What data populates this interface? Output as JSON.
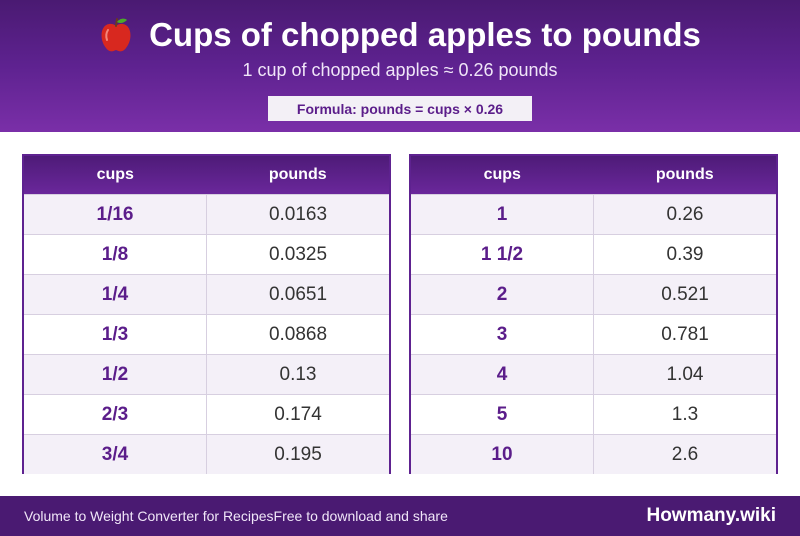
{
  "header": {
    "title": "Cups of chopped apples to pounds",
    "icon": "apple-icon",
    "subtitle": "1 cup of chopped apples ≈ 0.26 pounds",
    "formula": "Formula: pounds = cups × 0.26"
  },
  "tables": [
    {
      "headers": [
        "cups",
        "pounds"
      ],
      "rows": [
        [
          "1/16",
          "0.0163"
        ],
        [
          "1/8",
          "0.0325"
        ],
        [
          "1/4",
          "0.0651"
        ],
        [
          "1/3",
          "0.0868"
        ],
        [
          "1/2",
          "0.13"
        ],
        [
          "2/3",
          "0.174"
        ],
        [
          "3/4",
          "0.195"
        ]
      ]
    },
    {
      "headers": [
        "cups",
        "pounds"
      ],
      "rows": [
        [
          "1",
          "0.26"
        ],
        [
          "1 1/2",
          "0.39"
        ],
        [
          "2",
          "0.521"
        ],
        [
          "3",
          "0.781"
        ],
        [
          "4",
          "1.04"
        ],
        [
          "5",
          "1.3"
        ],
        [
          "10",
          "2.6"
        ]
      ]
    }
  ],
  "footer": {
    "left_text": "Volume to Weight Converter for RecipesFree to download and share",
    "brand": "Howmany.wiki"
  },
  "colors": {
    "primary": "#5e2290",
    "accent_text": "#5b1d8a"
  }
}
